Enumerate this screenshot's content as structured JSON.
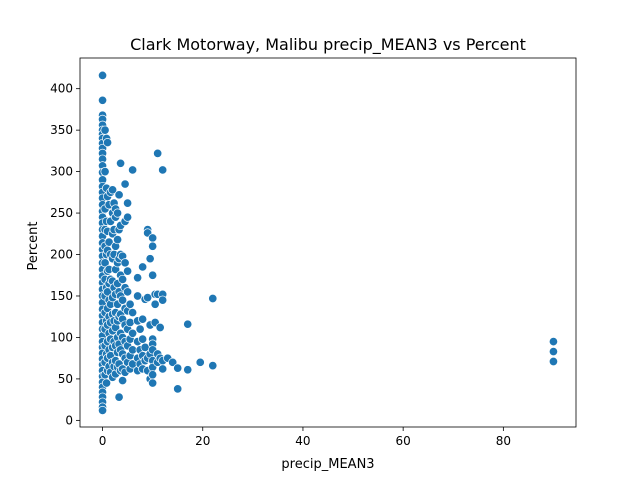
{
  "chart_data": {
    "type": "scatter",
    "title": "Clark Motorway, Malibu precip_MEAN3 vs Percent",
    "xlabel": "precip_MEAN3",
    "ylabel": "Percent",
    "xlim": [
      -4.5,
      94.5
    ],
    "ylim": [
      -8,
      437
    ],
    "xticks": [
      0,
      20,
      40,
      60,
      80
    ],
    "yticks": [
      0,
      50,
      100,
      150,
      200,
      250,
      300,
      350,
      400
    ],
    "grid": false,
    "point_color": "#1f77b4",
    "point_edge_color": "#ffffff",
    "points": [
      [
        0,
        416
      ],
      [
        0,
        386
      ],
      [
        0,
        368
      ],
      [
        0,
        363
      ],
      [
        0,
        356
      ],
      [
        0,
        350
      ],
      [
        0,
        345
      ],
      [
        0,
        340
      ],
      [
        0,
        334
      ],
      [
        0,
        328
      ],
      [
        0,
        322
      ],
      [
        0,
        315
      ],
      [
        0,
        307
      ],
      [
        0,
        299
      ],
      [
        0,
        290
      ],
      [
        0,
        282
      ],
      [
        0,
        275
      ],
      [
        0,
        268
      ],
      [
        0,
        260
      ],
      [
        0,
        252
      ],
      [
        0,
        245
      ],
      [
        0,
        238
      ],
      [
        0,
        230
      ],
      [
        0,
        222
      ],
      [
        0,
        214
      ],
      [
        0,
        206
      ],
      [
        0,
        198
      ],
      [
        0,
        190
      ],
      [
        0,
        182
      ],
      [
        0,
        174
      ],
      [
        0,
        166
      ],
      [
        0,
        158
      ],
      [
        0,
        150
      ],
      [
        0,
        142
      ],
      [
        0,
        134
      ],
      [
        0,
        126
      ],
      [
        0,
        118
      ],
      [
        0,
        110
      ],
      [
        0,
        102
      ],
      [
        0,
        95
      ],
      [
        0,
        88
      ],
      [
        0,
        81
      ],
      [
        0,
        74
      ],
      [
        0,
        67
      ],
      [
        0,
        60
      ],
      [
        0,
        53
      ],
      [
        0,
        46
      ],
      [
        0,
        40
      ],
      [
        0,
        34
      ],
      [
        0,
        28
      ],
      [
        0,
        22
      ],
      [
        0,
        16
      ],
      [
        0,
        12
      ],
      [
        0.5,
        350
      ],
      [
        0.5,
        300
      ],
      [
        0.5,
        255
      ],
      [
        0.5,
        230
      ],
      [
        0.5,
        210
      ],
      [
        0.5,
        190
      ],
      [
        0.5,
        170
      ],
      [
        0.5,
        150
      ],
      [
        0.5,
        130
      ],
      [
        0.5,
        110
      ],
      [
        0.5,
        90
      ],
      [
        0.5,
        70
      ],
      [
        0.5,
        55
      ],
      [
        0.8,
        340
      ],
      [
        0.8,
        280
      ],
      [
        0.8,
        240
      ],
      [
        0.8,
        200
      ],
      [
        0.8,
        160
      ],
      [
        0.8,
        120
      ],
      [
        0.8,
        80
      ],
      [
        0.8,
        45
      ],
      [
        1,
        335
      ],
      [
        1,
        270
      ],
      [
        1,
        228
      ],
      [
        1,
        205
      ],
      [
        1,
        180
      ],
      [
        1,
        155
      ],
      [
        1,
        135
      ],
      [
        1,
        115
      ],
      [
        1,
        95
      ],
      [
        1,
        75
      ],
      [
        1,
        60
      ],
      [
        1.3,
        260
      ],
      [
        1.3,
        215
      ],
      [
        1.3,
        182
      ],
      [
        1.3,
        165
      ],
      [
        1.3,
        145
      ],
      [
        1.3,
        125
      ],
      [
        1.3,
        105
      ],
      [
        1.3,
        85
      ],
      [
        1.3,
        65
      ],
      [
        1.6,
        275
      ],
      [
        1.6,
        240
      ],
      [
        1.6,
        200
      ],
      [
        1.6,
        170
      ],
      [
        1.6,
        140
      ],
      [
        1.6,
        118
      ],
      [
        1.6,
        98
      ],
      [
        1.6,
        78
      ],
      [
        1.6,
        58
      ],
      [
        2,
        278
      ],
      [
        2,
        250
      ],
      [
        2,
        225
      ],
      [
        2,
        195
      ],
      [
        2,
        168
      ],
      [
        2,
        148
      ],
      [
        2,
        128
      ],
      [
        2,
        108
      ],
      [
        2,
        88
      ],
      [
        2,
        70
      ],
      [
        2,
        52
      ],
      [
        2.3,
        262
      ],
      [
        2.3,
        230
      ],
      [
        2.3,
        200
      ],
      [
        2.3,
        160
      ],
      [
        2.3,
        120
      ],
      [
        2.3,
        95
      ],
      [
        2.3,
        65
      ],
      [
        2.6,
        255
      ],
      [
        2.6,
        245
      ],
      [
        2.6,
        210
      ],
      [
        2.6,
        182
      ],
      [
        2.6,
        152
      ],
      [
        2.6,
        130
      ],
      [
        2.6,
        112
      ],
      [
        2.6,
        90
      ],
      [
        2.6,
        72
      ],
      [
        2.6,
        56
      ],
      [
        3,
        250
      ],
      [
        3,
        218
      ],
      [
        3,
        190
      ],
      [
        3,
        165
      ],
      [
        3,
        140
      ],
      [
        3,
        120
      ],
      [
        3,
        100
      ],
      [
        3,
        82
      ],
      [
        3,
        64
      ],
      [
        3.3,
        272
      ],
      [
        3.3,
        230
      ],
      [
        3.3,
        195
      ],
      [
        3.3,
        155
      ],
      [
        3.3,
        125
      ],
      [
        3.3,
        92
      ],
      [
        3.3,
        68
      ],
      [
        3.3,
        28
      ],
      [
        3.6,
        310
      ],
      [
        3.6,
        235
      ],
      [
        3.6,
        200
      ],
      [
        3.6,
        175
      ],
      [
        3.6,
        150
      ],
      [
        3.6,
        128
      ],
      [
        3.6,
        105
      ],
      [
        3.6,
        85
      ],
      [
        3.6,
        60
      ],
      [
        4,
        198
      ],
      [
        4,
        170
      ],
      [
        4,
        145
      ],
      [
        4,
        122
      ],
      [
        4,
        100
      ],
      [
        4,
        80
      ],
      [
        4,
        62
      ],
      [
        4,
        48
      ],
      [
        4.5,
        285
      ],
      [
        4.5,
        240
      ],
      [
        4.5,
        190
      ],
      [
        4.5,
        160
      ],
      [
        4.5,
        135
      ],
      [
        4.5,
        115
      ],
      [
        4.5,
        95
      ],
      [
        4.5,
        75
      ],
      [
        4.5,
        58
      ],
      [
        5,
        262
      ],
      [
        5,
        245
      ],
      [
        5,
        180
      ],
      [
        5,
        155
      ],
      [
        5,
        132
      ],
      [
        5,
        110
      ],
      [
        5,
        90
      ],
      [
        5,
        70
      ],
      [
        5.5,
        140
      ],
      [
        5.5,
        118
      ],
      [
        5.5,
        98
      ],
      [
        5.5,
        78
      ],
      [
        5.5,
        62
      ],
      [
        6,
        302
      ],
      [
        6,
        130
      ],
      [
        6,
        105
      ],
      [
        6,
        85
      ],
      [
        6,
        68
      ],
      [
        7,
        172
      ],
      [
        7,
        150
      ],
      [
        7,
        120
      ],
      [
        7,
        95
      ],
      [
        7,
        75
      ],
      [
        7,
        60
      ],
      [
        7.5,
        110
      ],
      [
        7.5,
        85
      ],
      [
        7.5,
        68
      ],
      [
        8,
        185
      ],
      [
        8,
        122
      ],
      [
        8,
        98
      ],
      [
        8,
        78
      ],
      [
        8,
        62
      ],
      [
        8.5,
        146
      ],
      [
        8.5,
        88
      ],
      [
        8.5,
        72
      ],
      [
        9,
        230
      ],
      [
        9,
        226
      ],
      [
        9,
        148
      ],
      [
        9,
        75
      ],
      [
        9,
        60
      ],
      [
        9.5,
        195
      ],
      [
        9.5,
        115
      ],
      [
        9.5,
        80
      ],
      [
        9.5,
        50
      ],
      [
        10,
        220
      ],
      [
        10,
        210
      ],
      [
        10,
        175
      ],
      [
        10,
        98
      ],
      [
        10,
        92
      ],
      [
        10,
        85
      ],
      [
        10,
        72
      ],
      [
        10,
        64
      ],
      [
        10,
        55
      ],
      [
        10,
        45
      ],
      [
        10.5,
        152
      ],
      [
        10.5,
        140
      ],
      [
        10.5,
        118
      ],
      [
        11,
        322
      ],
      [
        11,
        152
      ],
      [
        11,
        80
      ],
      [
        11,
        70
      ],
      [
        11.5,
        112
      ],
      [
        11.5,
        75
      ],
      [
        12,
        302
      ],
      [
        12,
        152
      ],
      [
        12,
        145
      ],
      [
        12,
        72
      ],
      [
        12,
        62
      ],
      [
        13,
        75
      ],
      [
        14,
        70
      ],
      [
        15,
        63
      ],
      [
        15,
        38
      ],
      [
        17,
        116
      ],
      [
        17,
        61
      ],
      [
        19.5,
        70
      ],
      [
        22,
        147
      ],
      [
        22,
        66
      ],
      [
        90,
        95
      ],
      [
        90,
        83
      ],
      [
        90,
        71
      ]
    ]
  }
}
